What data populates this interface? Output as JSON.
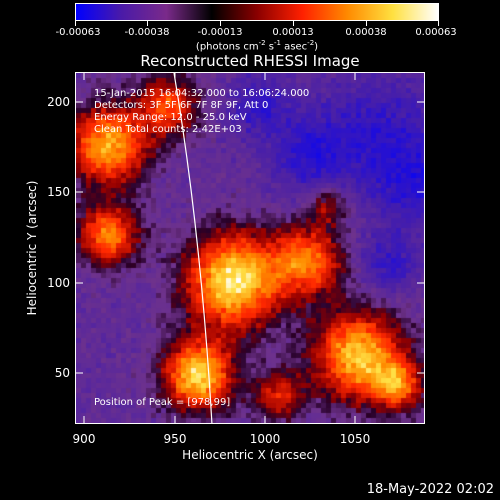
{
  "colorbar": {
    "tick_labels": [
      "-0.00063",
      "-0.00038",
      "-0.00013",
      "0.00013",
      "0.00038",
      "0.00063"
    ],
    "unit_parts": [
      "(photons cm",
      "-2",
      " s",
      "-1",
      " asec",
      "-2",
      ")"
    ],
    "colors": [
      "#0000ff",
      "#4a1aa8",
      "#7a2a8a",
      "#000000",
      "#8a0000",
      "#ff2000",
      "#ff8a00",
      "#ffe040",
      "#ffffff"
    ]
  },
  "plot": {
    "title": "Reconstructed RHESSI Image",
    "info_lines": [
      "15-Jan-2015 16:04:32.000 to 16:06:24.000",
      "Detectors: 3F 5F 6F 7F 8F 9F, Att 0",
      "Energy Range: 12.0 - 25.0 keV",
      "Clean    Total counts: 2.42E+03"
    ],
    "peak_label": "Position of Peak = [978,99]"
  },
  "axes": {
    "x_title": "Heliocentric X (arcsec)",
    "y_title": "Heliocentric Y (arcsec)",
    "x_ticks": [
      "900",
      "950",
      "1000",
      "1050"
    ],
    "y_ticks": [
      "200",
      "150",
      "100",
      "50"
    ]
  },
  "footer": {
    "timestamp": "18-May-2022 02:02"
  }
}
